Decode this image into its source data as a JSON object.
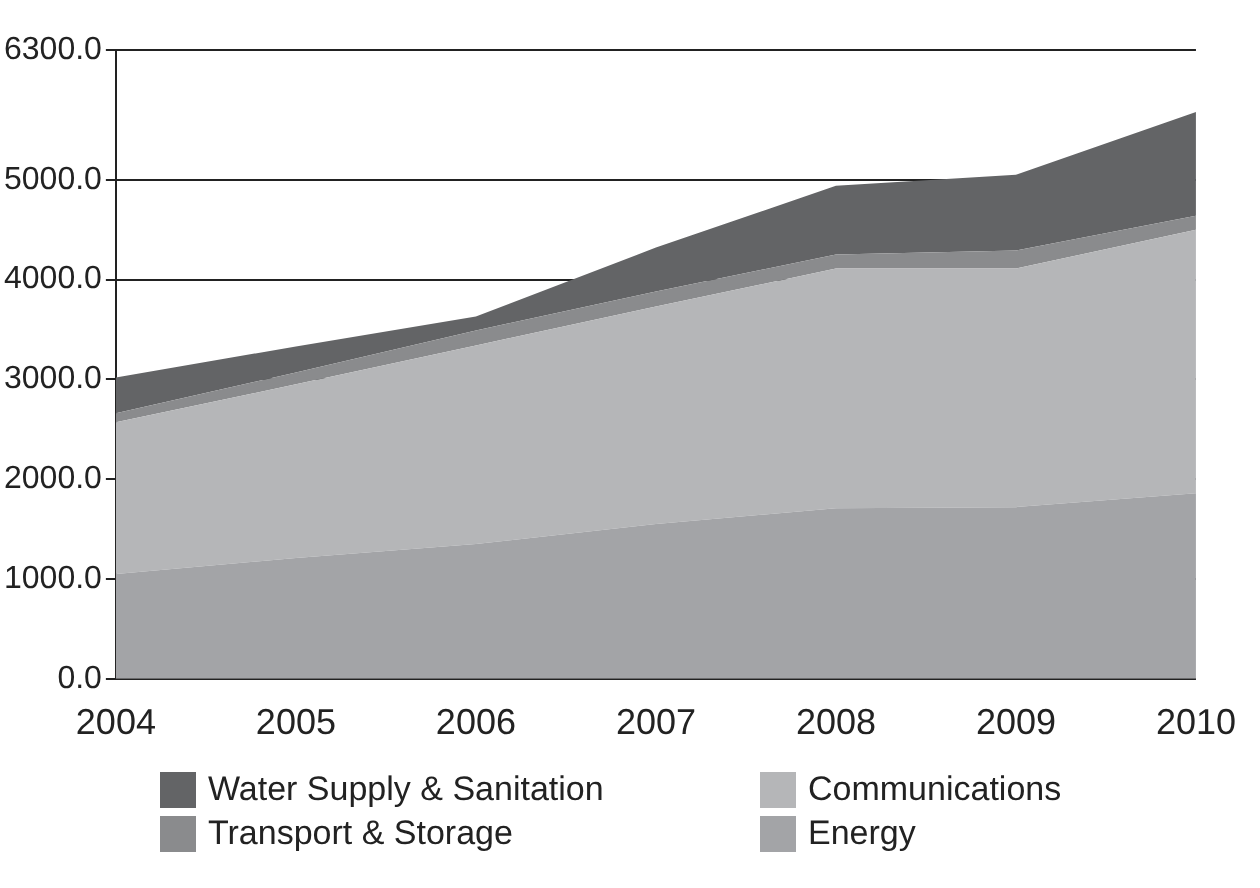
{
  "chart_data": {
    "type": "area",
    "stacked": true,
    "categories": [
      "2004",
      "2005",
      "2006",
      "2007",
      "2008",
      "2009",
      "2010"
    ],
    "series": [
      {
        "name": "Energy",
        "color": "#a3a4a7",
        "values": [
          1050,
          1210,
          1350,
          1550,
          1710,
          1720,
          1860
        ]
      },
      {
        "name": "Communications",
        "color": "#b5b6b8",
        "values": [
          1520,
          1740,
          1990,
          2180,
          2400,
          2390,
          2640
        ]
      },
      {
        "name": "Transport & Storage",
        "color": "#8a8b8d",
        "values": [
          90,
          120,
          150,
          150,
          140,
          180,
          140
        ]
      },
      {
        "name": "Water Supply & Sanitation",
        "color": "#636466",
        "values": [
          360,
          260,
          140,
          440,
          690,
          760,
          1040
        ]
      }
    ],
    "ylim": [
      0,
      6300
    ],
    "yticks": [
      {
        "value": 0,
        "label": "0.0"
      },
      {
        "value": 1000,
        "label": "1000.0"
      },
      {
        "value": 2000,
        "label": "2000.0"
      },
      {
        "value": 3000,
        "label": "3000.0"
      },
      {
        "value": 4000,
        "label": "4000.0"
      },
      {
        "value": 5000,
        "label": "5000.0"
      },
      {
        "value": 6300,
        "label": "6300.0"
      }
    ],
    "grid": "y",
    "legend": "bottom"
  }
}
